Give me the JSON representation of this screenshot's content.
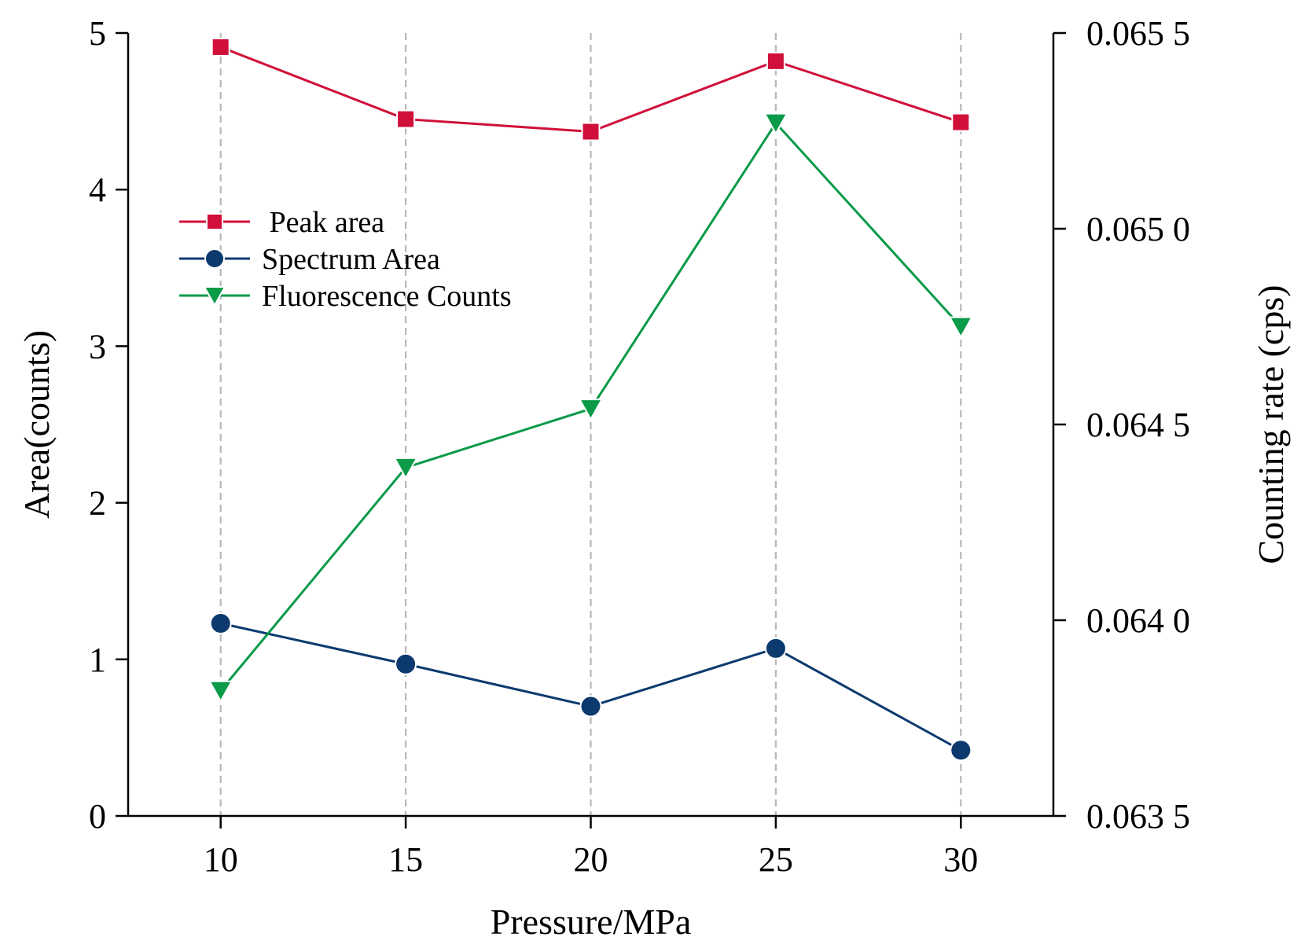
{
  "chart_data": {
    "type": "line",
    "xlabel": "Pressure/MPa",
    "ylabel_left": "Area(counts)",
    "ylabel_right": "Counting rate (cps)",
    "x": [
      10,
      15,
      20,
      25,
      30
    ],
    "x_ticks": [
      "10",
      "15",
      "20",
      "25",
      "30"
    ],
    "xlim": [
      7.5,
      32.5
    ],
    "ylim_left": [
      0,
      5
    ],
    "y_ticks_left": [
      "0",
      "1",
      "2",
      "3",
      "4",
      "5"
    ],
    "ylim_right": [
      0.0635,
      0.0655
    ],
    "y_ticks_right": [
      "0.063 5",
      "0.064 0",
      "0.064 5",
      "0.065 0",
      "0.065 5"
    ],
    "grid": "vertical dashed at x ticks",
    "legend_position": "upper-left",
    "series": [
      {
        "name": " Peak area",
        "axis": "left",
        "marker": "square",
        "color": "#d0103a",
        "values": [
          4.91,
          4.45,
          4.37,
          4.82,
          4.43
        ]
      },
      {
        "name": "Spectrum Area",
        "axis": "left",
        "marker": "circle",
        "color": "#0c3a6e",
        "values": [
          1.23,
          0.97,
          0.7,
          1.07,
          0.42
        ]
      },
      {
        "name": "Fluorescence Counts",
        "axis": "right",
        "marker": "triangle-down",
        "color": "#0a9a48",
        "values": [
          0.06382,
          0.06439,
          0.06454,
          0.06527,
          0.06475
        ]
      }
    ]
  }
}
